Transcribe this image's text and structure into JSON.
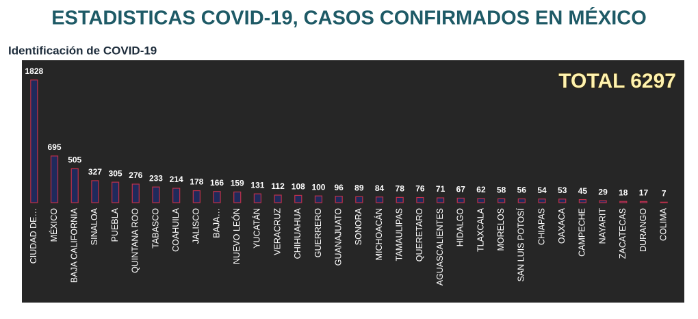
{
  "chart_data": {
    "type": "bar",
    "title": "ESTADISTICAS COVID-19, CASOS CONFIRMADOS EN MÉXICO",
    "subtitle": "Identificación de COVID-19",
    "annotation": "TOTAL 6297",
    "categories": [
      "CIUDAD DE…",
      "MÉXICO",
      "BAJA CALIFORNIA",
      "SINALOA",
      "PUEBLA",
      "QUINTANA ROO",
      "TABASCO",
      "COAHUILA",
      "JALISCO",
      "BAJA…",
      "NUEVO LEÓN",
      "YUCATÁN",
      "VERACRUZ",
      "CHIHUAHUA",
      "GUERRERO",
      "GUANAJUATO",
      "SONORA",
      "MICHOACÁN",
      "TAMAULIPAS",
      "QUERETARO",
      "AGUASCALIENTES",
      "HIDALGO",
      "TLAXCALA",
      "MORELOS",
      "SAN LUIS POTOSÍ",
      "CHIAPAS",
      "OAXACA",
      "CAMPECHE",
      "NAYARIT",
      "ZACATECAS",
      "DURANGO",
      "COLIMA"
    ],
    "values": [
      1828,
      695,
      505,
      327,
      305,
      276,
      233,
      214,
      178,
      166,
      159,
      131,
      112,
      108,
      100,
      96,
      89,
      84,
      78,
      76,
      71,
      67,
      62,
      58,
      56,
      54,
      53,
      45,
      29,
      18,
      17,
      7
    ],
    "color": "#1f2a5c",
    "edge_color": "#c0304a",
    "ylim": [
      0,
      2000
    ]
  }
}
